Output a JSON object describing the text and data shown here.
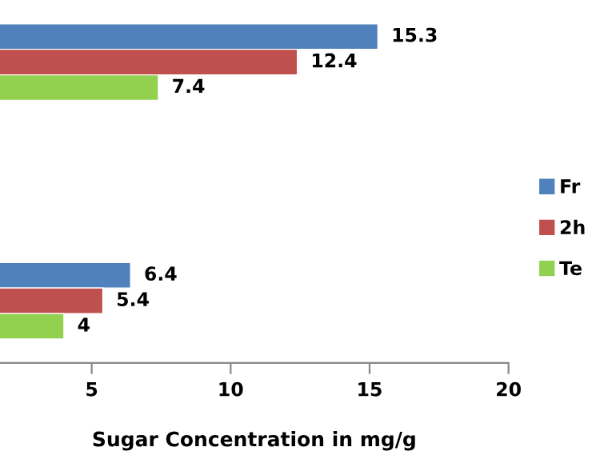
{
  "chart_data": {
    "type": "bar",
    "orientation": "horizontal",
    "xlabel": "Sugar Concentration in mg/g",
    "categories": [
      null,
      null
    ],
    "series": [
      {
        "name": "Fr",
        "color": "#4f81bd",
        "values": [
          15.3,
          6.4
        ]
      },
      {
        "name": "2h",
        "color": "#c0504d",
        "values": [
          12.4,
          5.4
        ]
      },
      {
        "name": "Te",
        "color": "#92d050",
        "values": [
          7.4,
          4
        ]
      }
    ],
    "xlim": [
      1.7,
      20
    ],
    "xticks": [
      5,
      10,
      15,
      20
    ],
    "data_labels": true,
    "grid": false,
    "legend": "right"
  }
}
